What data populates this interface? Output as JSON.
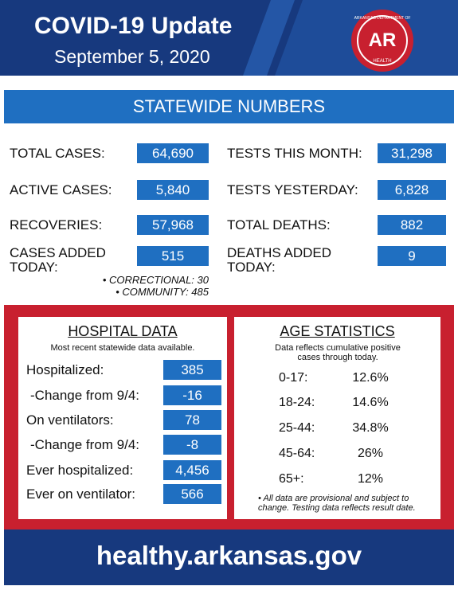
{
  "header": {
    "title": "COVID-19 Update",
    "date": "September 5, 2020"
  },
  "logo": {
    "mark": "AR",
    "top": "ARKANSAS DEPARTMENT OF",
    "bottom": "HEALTH"
  },
  "statewide": {
    "title": "STATEWIDE NUMBERS",
    "left": [
      {
        "label": "TOTAL CASES:",
        "value": "64,690"
      },
      {
        "label": "ACTIVE CASES:",
        "value": "5,840"
      },
      {
        "label": "RECOVERIES:",
        "value": "57,968"
      },
      {
        "label": "CASES ADDED TODAY:",
        "value": "515"
      }
    ],
    "right": [
      {
        "label": "TESTS THIS MONTH:",
        "value": "31,298"
      },
      {
        "label": "TESTS YESTERDAY:",
        "value": "6,828"
      },
      {
        "label": "TOTAL DEATHS:",
        "value": "882"
      },
      {
        "label": "DEATHS ADDED TODAY:",
        "value": "9"
      }
    ],
    "notes": [
      "• CORRECTIONAL: 30",
      "• COMMUNITY: 485"
    ]
  },
  "hospital": {
    "title": "HOSPITAL DATA",
    "subtitle": "Most recent statewide data available.",
    "rows": [
      {
        "label": "Hospitalized:",
        "value": "385"
      },
      {
        "label": "-Change from 9/4:",
        "value": "-16"
      },
      {
        "label": "On ventilators:",
        "value": "78"
      },
      {
        "label": "-Change from 9/4:",
        "value": "-8"
      },
      {
        "label": "Ever hospitalized:",
        "value": "4,456"
      },
      {
        "label": "Ever on ventilator:",
        "value": "566"
      }
    ]
  },
  "age": {
    "title": "AGE STATISTICS",
    "subtitle": "Data reflects cumulative positive cases through today.",
    "rows": [
      {
        "range": "0-17:",
        "percent": "12.6%"
      },
      {
        "range": "18-24:",
        "percent": "14.6%"
      },
      {
        "range": "25-44:",
        "percent": "34.8%"
      },
      {
        "range": "45-64:",
        "percent": "26%"
      },
      {
        "range": "65+:",
        "percent": "12%"
      }
    ],
    "note": "• All data are provisional and subject to change. Testing data reflects result date."
  },
  "footer": {
    "url": "healthy.arkansas.gov"
  }
}
